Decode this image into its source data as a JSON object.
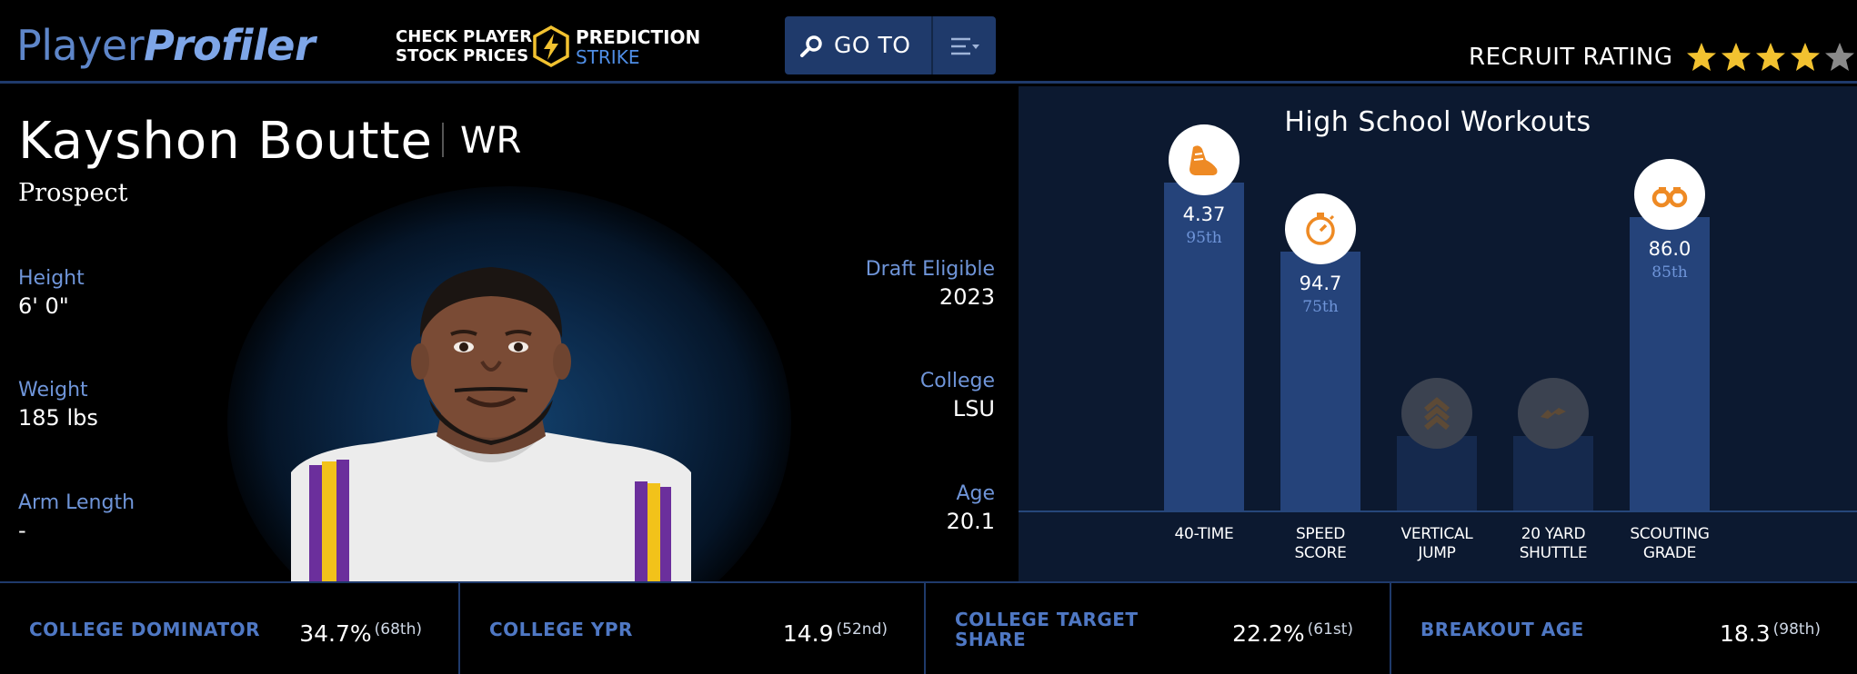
{
  "header": {
    "logo_part1": "Player",
    "logo_part2": "Profiler",
    "promo_line1": "CHECK PLAYER",
    "promo_line2": "STOCK PRICES",
    "promo_brand1": "PREDICTION",
    "promo_brand2": "STRIKE",
    "goto_label": "GO TO",
    "recruit_label": "RECRUIT RATING",
    "recruit_stars": 4,
    "recruit_stars_max": 5
  },
  "player": {
    "name": "Kayshon Boutte",
    "position": "WR",
    "status": "Prospect",
    "left_stats": [
      {
        "label": "Height",
        "value": "6' 0\""
      },
      {
        "label": "Weight",
        "value": "185 lbs"
      },
      {
        "label": "Arm Length",
        "value": "-"
      }
    ],
    "right_stats": [
      {
        "label": "Draft Eligible",
        "value": "2023"
      },
      {
        "label": "College",
        "value": "LSU"
      },
      {
        "label": "Age",
        "value": "20.1"
      }
    ]
  },
  "workouts": {
    "title": "High School Workouts",
    "items": [
      {
        "cat1": "40-TIME",
        "cat2": "",
        "value": "4.37",
        "percentile": "95th",
        "pct": 95,
        "icon": "shoe-icon"
      },
      {
        "cat1": "SPEED",
        "cat2": "SCORE",
        "value": "94.7",
        "percentile": "75th",
        "pct": 75,
        "icon": "stopwatch-icon"
      },
      {
        "cat1": "VERTICAL",
        "cat2": "JUMP",
        "value": "",
        "percentile": "",
        "pct": 0,
        "icon": "chevrons-up-icon"
      },
      {
        "cat1": "20 YARD",
        "cat2": "SHUTTLE",
        "value": "",
        "percentile": "",
        "pct": 0,
        "icon": "zigzag-icon"
      },
      {
        "cat1": "SCOUTING",
        "cat2": "GRADE",
        "value": "86.0",
        "percentile": "85th",
        "pct": 85,
        "icon": "binoculars-icon"
      }
    ]
  },
  "bottom_stats": [
    {
      "label_line1": "COLLEGE DOMINATOR",
      "label_line2": "",
      "value": "34.7%",
      "rank": "(68th)"
    },
    {
      "label_line1": "COLLEGE YPR",
      "label_line2": "",
      "value": "14.9",
      "rank": "(52nd)"
    },
    {
      "label_line1": "COLLEGE TARGET",
      "label_line2": "SHARE",
      "value": "22.2%",
      "rank": "(61st)"
    },
    {
      "label_line1": "BREAKOUT AGE",
      "label_line2": "",
      "value": "18.3",
      "rank": "(98th)"
    }
  ],
  "colors": {
    "accent_blue": "#6f95d9",
    "bar_fill": "#25437a",
    "bar_empty": "#15294d",
    "icon_orange": "#ee8a24",
    "star_gold": "#f2c230"
  }
}
